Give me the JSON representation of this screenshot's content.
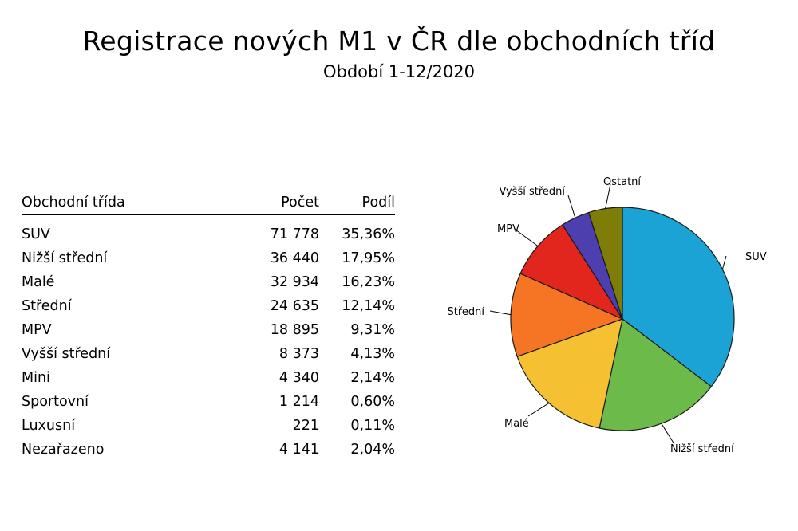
{
  "title": "Registrace nových M1 v ČR dle obchodních tříd",
  "subtitle": "Období 1-12/2020",
  "table": {
    "headers": {
      "name": "Obchodní třída",
      "count": "Počet",
      "share": "Podíl"
    },
    "rows": [
      {
        "name": "SUV",
        "count": "71 778",
        "share": "35,36%"
      },
      {
        "name": "Nižší střední",
        "count": "36 440",
        "share": "17,95%"
      },
      {
        "name": "Malé",
        "count": "32 934",
        "share": "16,23%"
      },
      {
        "name": "Střední",
        "count": "24 635",
        "share": "12,14%"
      },
      {
        "name": "MPV",
        "count": "18 895",
        "share": "9,31%"
      },
      {
        "name": "Vyšší střední",
        "count": "8 373",
        "share": "4,13%"
      },
      {
        "name": "Mini",
        "count": "4 340",
        "share": "2,14%"
      },
      {
        "name": "Sportovní",
        "count": "1 214",
        "share": "0,60%"
      },
      {
        "name": "Luxusní",
        "count": "221",
        "share": "0,11%"
      },
      {
        "name": "Nezařazeno",
        "count": "4 141",
        "share": "2,04%"
      }
    ]
  },
  "chart_data": {
    "type": "pie",
    "slices": [
      {
        "label": "SUV",
        "value": 35.36,
        "color": "#1aa3d4"
      },
      {
        "label": "Nižší střední",
        "value": 17.95,
        "color": "#6cba4a"
      },
      {
        "label": "Malé",
        "value": 16.23,
        "color": "#f5c032"
      },
      {
        "label": "Střední",
        "value": 12.14,
        "color": "#f57525"
      },
      {
        "label": "MPV",
        "value": 9.31,
        "color": "#e2261e"
      },
      {
        "label": "Vyšší střední",
        "value": 4.13,
        "color": "#4e3fb0"
      },
      {
        "label": "Ostatní",
        "value": 4.89,
        "color": "#7d7d08"
      }
    ]
  }
}
